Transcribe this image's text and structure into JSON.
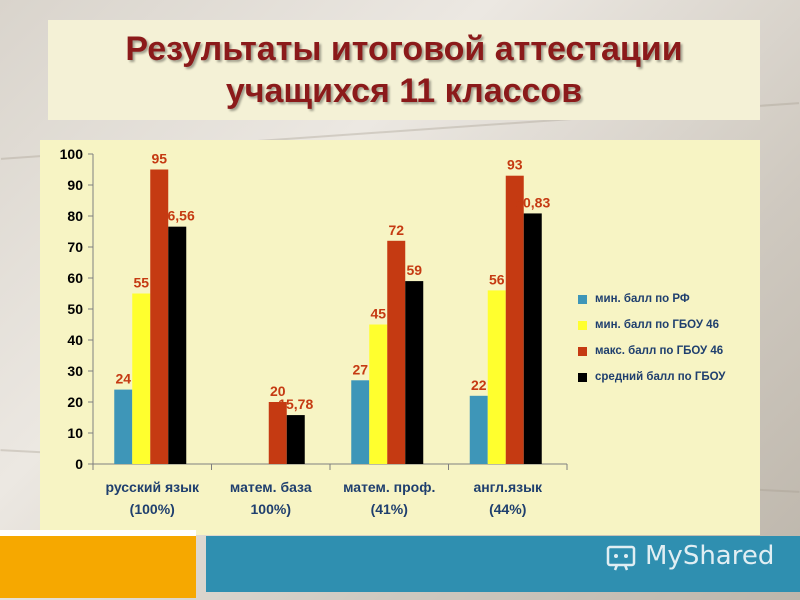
{
  "title": {
    "line1": "Результаты итоговой аттестации",
    "line2": "учащихся 11 классов"
  },
  "watermark": "MyShared",
  "colors": {
    "series": [
      "#3e96b8",
      "#ffff2e",
      "#c53a12",
      "#000000"
    ],
    "title": "#8b1a1a",
    "label": "#1f3f6e",
    "value_label": "#c53a12"
  },
  "chart_data": {
    "type": "bar",
    "ylim": [
      0,
      100
    ],
    "yticks": [
      0,
      10,
      20,
      30,
      40,
      50,
      60,
      70,
      80,
      90,
      100
    ],
    "categories": [
      [
        "русский язык",
        "(100%)"
      ],
      [
        "матем. база",
        "100%)"
      ],
      [
        "матем. проф.",
        "(41%)"
      ],
      [
        "англ.язык",
        "(44%)"
      ]
    ],
    "series": [
      {
        "name": "мин. балл по РФ",
        "values": [
          24,
          null,
          27,
          22
        ],
        "labels": [
          "24",
          "",
          "27",
          "22"
        ]
      },
      {
        "name": "мин. балл по ГБОУ 46",
        "values": [
          55,
          null,
          45,
          56
        ],
        "labels": [
          "55",
          "",
          "45",
          "56"
        ]
      },
      {
        "name": "макс. балл по ГБОУ 46",
        "values": [
          95,
          20,
          72,
          93
        ],
        "labels": [
          "95",
          "20",
          "72",
          "93"
        ]
      },
      {
        "name": "средний балл по ГБОУ",
        "values": [
          76.56,
          15.78,
          59,
          80.83
        ],
        "labels": [
          "76,56",
          "15,78",
          "59",
          "80,83"
        ]
      }
    ],
    "grid": false,
    "legend": "right"
  }
}
